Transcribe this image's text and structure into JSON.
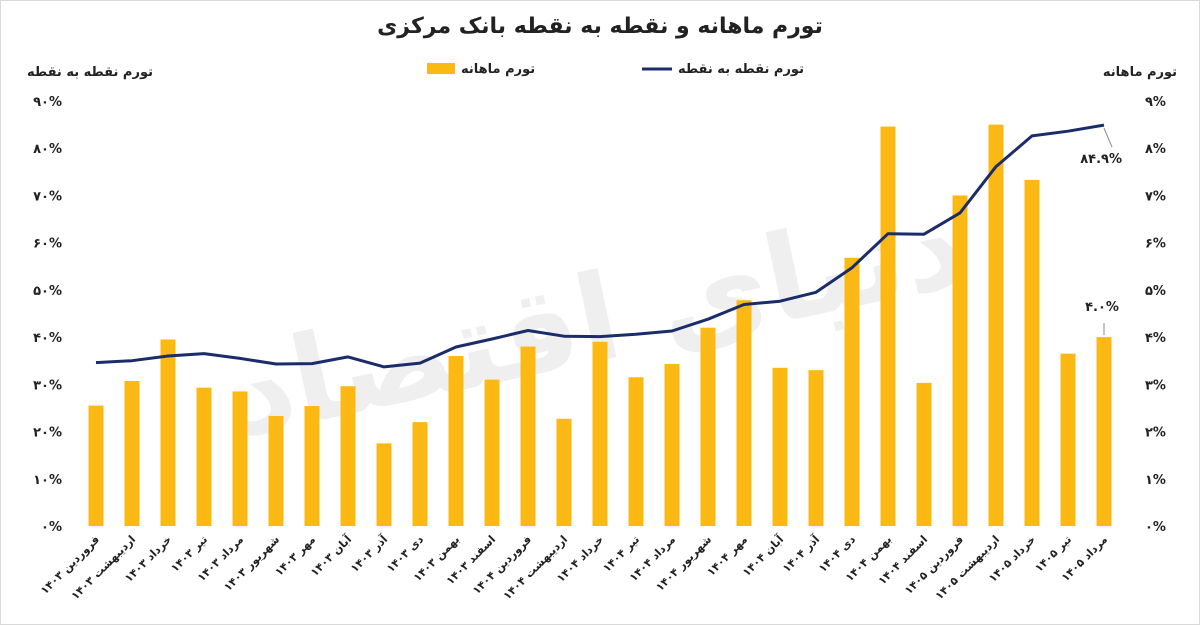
{
  "chart_data": {
    "type": "bar+line",
    "title": "تورم ماهانه و نقطه به نقطه بانک مرکزی",
    "left_axis_title": "تورم نقطه به نقطه",
    "right_axis_title": "تورم ماهانه",
    "legend": {
      "bar": "تورم ماهانه",
      "line": "تورم نقطه به نقطه"
    },
    "watermark": "دنیای اقتصاد",
    "left_ylim": [
      0,
      90
    ],
    "right_ylim": [
      0,
      9
    ],
    "left_ticks": [
      "۰%",
      "۱۰%",
      "۲۰%",
      "۳۰%",
      "۴۰%",
      "۵۰%",
      "۶۰%",
      "۷۰%",
      "۸۰%",
      "۹۰%"
    ],
    "right_ticks": [
      "۰%",
      "۱%",
      "۲%",
      "۳%",
      "۴%",
      "۵%",
      "۶%",
      "۷%",
      "۸%",
      "۹%"
    ],
    "categories": [
      "فروردین ۱۴۰۳",
      "اردیبهشت ۱۴۰۳",
      "خرداد ۱۴۰۳",
      "تیر ۱۴۰۳",
      "مرداد ۱۴۰۳",
      "شهریور ۱۴۰۳",
      "مهر ۱۴۰۳",
      "آبان ۱۴۰۳",
      "آذر ۱۴۰۳",
      "دی ۱۴۰۳",
      "بهمن ۱۴۰۳",
      "اسفند ۱۴۰۳",
      "فروردین ۱۴۰۴",
      "اردیبهشت ۱۴۰۴",
      "خرداد ۱۴۰۴",
      "تیر ۱۴۰۴",
      "مرداد ۱۴۰۴",
      "شهریور ۱۴۰۴",
      "مهر ۱۴۰۴",
      "آبان ۱۴۰۴",
      "آذر ۱۴۰۴",
      "دی ۱۴۰۴",
      "بهمن ۱۴۰۴",
      "اسفند ۱۴۰۴",
      "فروردین ۱۴۰۵",
      "اردیبهشت ۱۴۰۵",
      "خرداد ۱۴۰۵",
      "تیر ۱۴۰۵",
      "مرداد ۱۴۰۵"
    ],
    "series": [
      {
        "name": "تورم ماهانه",
        "type": "bar",
        "axis": "right",
        "color": "#FDB913",
        "values": [
          2.55,
          3.07,
          3.95,
          2.93,
          2.85,
          2.33,
          2.54,
          2.96,
          1.75,
          2.2,
          3.6,
          3.1,
          3.8,
          2.27,
          3.9,
          3.15,
          3.43,
          4.2,
          4.78,
          3.35,
          3.3,
          5.68,
          8.46,
          3.03,
          7.0,
          8.5,
          7.33,
          3.65,
          4.0
        ]
      },
      {
        "name": "تورم نقطه به نقطه",
        "type": "line",
        "axis": "left",
        "color": "#1B2C6B",
        "values": [
          34.6,
          35.0,
          36.0,
          36.5,
          35.5,
          34.3,
          34.4,
          35.8,
          33.7,
          34.5,
          37.9,
          39.6,
          41.4,
          40.2,
          40.1,
          40.6,
          41.3,
          43.8,
          46.9,
          47.6,
          49.5,
          54.7,
          61.9,
          61.8,
          66.3,
          76.1,
          82.6,
          83.6,
          84.9
        ]
      }
    ],
    "data_labels": {
      "line_last": "۸۴.۹%",
      "bar_last": "۴.۰%"
    }
  }
}
